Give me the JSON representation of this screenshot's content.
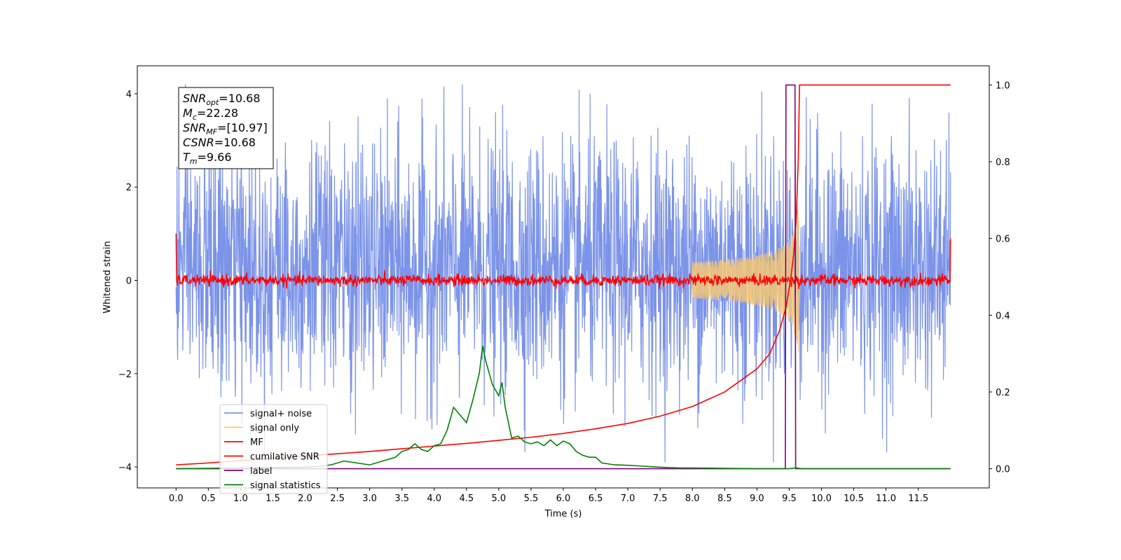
{
  "chart_data": {
    "type": "line",
    "xlabel": "Time (s)",
    "ylabel": "Whitened strain",
    "ylabel_right": "",
    "xlim": [
      -0.6,
      12.6
    ],
    "ylim": [
      -4.45,
      4.6
    ],
    "ylim_right": [
      -0.05,
      1.05
    ],
    "x_ticks": [
      0.0,
      0.5,
      1.0,
      1.5,
      2.0,
      2.5,
      3.0,
      3.5,
      4.0,
      4.5,
      5.0,
      5.5,
      6.0,
      6.5,
      7.0,
      7.5,
      8.0,
      8.5,
      9.0,
      9.5,
      10.0,
      10.5,
      11.0,
      11.5
    ],
    "x_tick_labels": [
      "0.0",
      "0.5",
      "1.0",
      "1.5",
      "2.0",
      "2.5",
      "3.0",
      "3.5",
      "4.0",
      "4.5",
      "5.0",
      "5.5",
      "6.0",
      "6.5",
      "7.0",
      "7.5",
      "8.0",
      "8.5",
      "9.0",
      "9.5",
      "10.0",
      "10.5",
      "11.0",
      "11.5"
    ],
    "y_ticks": [
      -4,
      -2,
      0,
      2,
      4
    ],
    "y_tick_labels": [
      "−4",
      "−2",
      "0",
      "2",
      "4"
    ],
    "y_ticks_right": [
      0.0,
      0.2,
      0.4,
      0.6,
      0.8,
      1.0
    ],
    "y_tick_labels_right": [
      "0.0",
      "0.2",
      "0.4",
      "0.6",
      "0.8",
      "1.0"
    ],
    "grid": false,
    "legend_position": "lower-left",
    "series": [
      {
        "name": "signal+ noise",
        "color": "#7b93e8",
        "axis": "left",
        "kind": "noise",
        "x_range": [
          0.0,
          12.0
        ],
        "mean": 0.3,
        "typical_range": [
          -2.5,
          2.8
        ],
        "extreme_range": [
          -3.9,
          4.2
        ]
      },
      {
        "name": "signal only",
        "color": "#f5c776",
        "axis": "left",
        "kind": "chirp",
        "x_range": [
          8.0,
          9.66
        ],
        "peak_amplitude": 1.6,
        "merger_time": 9.66
      },
      {
        "name": "MF",
        "color": "#ff0000",
        "axis": "left",
        "kind": "noise",
        "x_range": [
          0.0,
          12.0
        ],
        "mean": 0.0,
        "typical_range": [
          -0.1,
          0.2
        ],
        "start_value": 1.0,
        "end_value": 0.9
      },
      {
        "name": "cumilative SNR",
        "color": "#ff0000",
        "axis": "right",
        "kind": "line",
        "x": [
          0.0,
          0.5,
          1.0,
          1.5,
          2.0,
          2.5,
          3.0,
          3.5,
          4.0,
          4.5,
          5.0,
          5.5,
          6.0,
          6.5,
          7.0,
          7.5,
          8.0,
          8.5,
          9.0,
          9.2,
          9.35,
          9.45,
          9.52,
          9.57,
          9.61,
          9.64,
          9.66,
          9.7,
          12.0
        ],
        "values": [
          0.01,
          0.015,
          0.021,
          0.027,
          0.033,
          0.039,
          0.045,
          0.052,
          0.059,
          0.066,
          0.074,
          0.082,
          0.092,
          0.104,
          0.118,
          0.137,
          0.162,
          0.2,
          0.26,
          0.3,
          0.36,
          0.42,
          0.49,
          0.56,
          0.66,
          0.8,
          1.0,
          1.0,
          1.0
        ]
      },
      {
        "name": "label",
        "color": "#800080",
        "axis": "right",
        "kind": "line",
        "x": [
          0.0,
          9.44,
          9.45,
          9.59,
          9.6,
          9.66,
          9.67,
          12.0
        ],
        "values": [
          0.0,
          0.0,
          1.0,
          1.0,
          0.0,
          0.0,
          0.0,
          0.0
        ]
      },
      {
        "name": "signal statistics",
        "color": "#008000",
        "axis": "right",
        "kind": "line",
        "x": [
          0.0,
          0.5,
          1.0,
          1.5,
          2.0,
          2.2,
          2.4,
          2.6,
          2.8,
          3.0,
          3.2,
          3.4,
          3.5,
          3.6,
          3.7,
          3.8,
          3.9,
          4.0,
          4.1,
          4.2,
          4.3,
          4.4,
          4.5,
          4.6,
          4.7,
          4.75,
          4.8,
          4.9,
          5.0,
          5.05,
          5.1,
          5.2,
          5.3,
          5.4,
          5.5,
          5.6,
          5.7,
          5.8,
          5.9,
          6.0,
          6.1,
          6.2,
          6.3,
          6.4,
          6.5,
          6.6,
          6.8,
          7.0,
          7.2,
          7.5,
          7.8,
          8.0,
          8.5,
          9.0,
          9.5,
          9.6,
          9.7,
          10.0,
          11.0,
          11.99
        ],
        "values": [
          0.0,
          0.001,
          0.002,
          0.003,
          0.004,
          0.006,
          0.01,
          0.02,
          0.015,
          0.01,
          0.02,
          0.03,
          0.045,
          0.05,
          0.065,
          0.05,
          0.045,
          0.06,
          0.065,
          0.1,
          0.16,
          0.14,
          0.12,
          0.18,
          0.25,
          0.32,
          0.28,
          0.22,
          0.19,
          0.225,
          0.16,
          0.08,
          0.085,
          0.07,
          0.065,
          0.07,
          0.06,
          0.075,
          0.06,
          0.072,
          0.065,
          0.045,
          0.035,
          0.03,
          0.03,
          0.015,
          0.01,
          0.009,
          0.007,
          0.004,
          0.002,
          0.002,
          0.001,
          0.0,
          0.0,
          0.002,
          0.0,
          0.0,
          0.0,
          0.0
        ]
      }
    ]
  },
  "info_box": [
    {
      "key": "snr_opt",
      "main": "SNR",
      "sub": "opt",
      "rest": "=10.68"
    },
    {
      "key": "mc",
      "main": "M",
      "sub": "c",
      "rest": "=22.28"
    },
    {
      "key": "snr_mf",
      "main": "SNR",
      "sub": "MF",
      "rest": "=[10.97]"
    },
    {
      "key": "csnr",
      "main": "CSNR",
      "sub": "",
      "rest": "=10.68"
    },
    {
      "key": "tm",
      "main": "T",
      "sub": "m",
      "rest": "=9.66"
    }
  ]
}
